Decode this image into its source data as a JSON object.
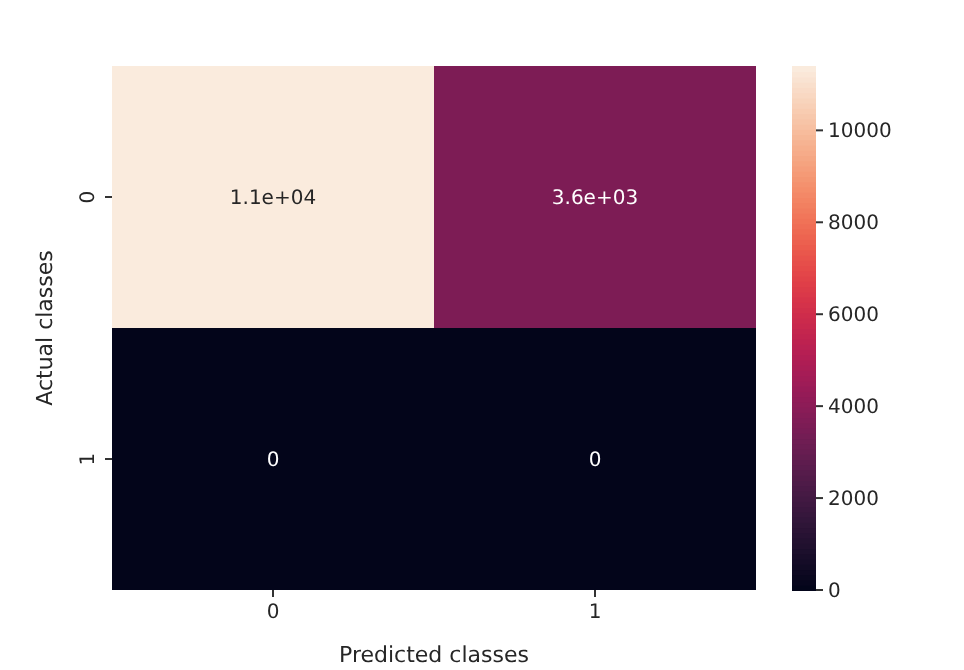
{
  "chart_data": {
    "type": "heatmap",
    "xlabel": "Predicted classes",
    "ylabel": "Actual classes",
    "categories": [
      "0",
      "1"
    ],
    "y_categories": [
      "0",
      "1"
    ],
    "cells": [
      [
        11400,
        3600
      ],
      [
        0,
        0
      ]
    ],
    "cell_labels": [
      [
        "1.1e+04",
        "3.6e+03"
      ],
      [
        "0",
        "0"
      ]
    ],
    "clim": [
      0,
      11400
    ],
    "cticks": [
      0,
      2000,
      4000,
      6000,
      8000,
      10000
    ]
  }
}
